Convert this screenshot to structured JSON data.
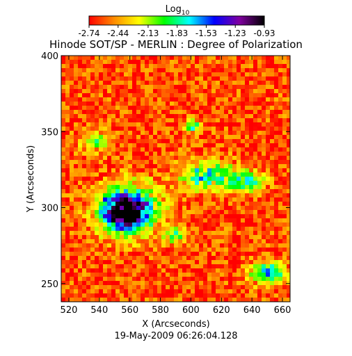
{
  "chart_data": {
    "type": "heatmap",
    "title": "Hinode SOT/SP - MERLIN : Degree of Polarization",
    "colorbar": {
      "label_base": "Log",
      "label_sub": "10",
      "ticks": [
        "-2.74",
        "-2.44",
        "-2.13",
        "-1.83",
        "-1.53",
        "-1.23",
        "-0.93"
      ],
      "range": [
        -2.74,
        -0.93
      ],
      "colors": [
        "#ff0000",
        "#ff8c00",
        "#ffff00",
        "#00ff00",
        "#00ffff",
        "#0000ff",
        "#8000a0",
        "#000000"
      ]
    },
    "xlabel": "X (Arcseconds)",
    "ylabel": "Y (Arcseconds)",
    "xlim": [
      515,
      665
    ],
    "ylim": [
      238,
      400
    ],
    "xticks": [
      520,
      540,
      560,
      580,
      600,
      620,
      640,
      660
    ],
    "yticks": [
      250,
      300,
      350,
      400
    ],
    "timestamp": "19-May-2009 06:26:04.128",
    "background_level": -2.6,
    "features": [
      {
        "x": 558,
        "y": 300,
        "rx": 22,
        "ry": 18,
        "level": -1.45
      },
      {
        "x": 555,
        "y": 298,
        "rx": 14,
        "ry": 12,
        "level": -1.25
      },
      {
        "x": 610,
        "y": 322,
        "rx": 20,
        "ry": 10,
        "level": -1.7
      },
      {
        "x": 635,
        "y": 318,
        "rx": 12,
        "ry": 8,
        "level": -1.75
      },
      {
        "x": 600,
        "y": 355,
        "rx": 6,
        "ry": 4,
        "level": -1.6
      },
      {
        "x": 650,
        "y": 258,
        "rx": 12,
        "ry": 8,
        "level": -1.55
      },
      {
        "x": 588,
        "y": 283,
        "rx": 8,
        "ry": 6,
        "level": -1.9
      },
      {
        "x": 535,
        "y": 345,
        "rx": 10,
        "ry": 8,
        "level": -2.0
      }
    ]
  }
}
